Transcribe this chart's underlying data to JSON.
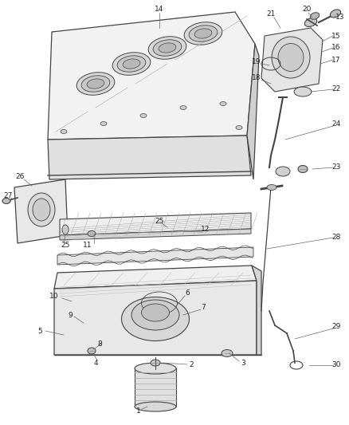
{
  "bg_color": "#ffffff",
  "line_color": "#444444",
  "text_color": "#222222",
  "label_fontsize": 6.5,
  "figsize": [
    4.38,
    5.33
  ],
  "dpi": 100
}
